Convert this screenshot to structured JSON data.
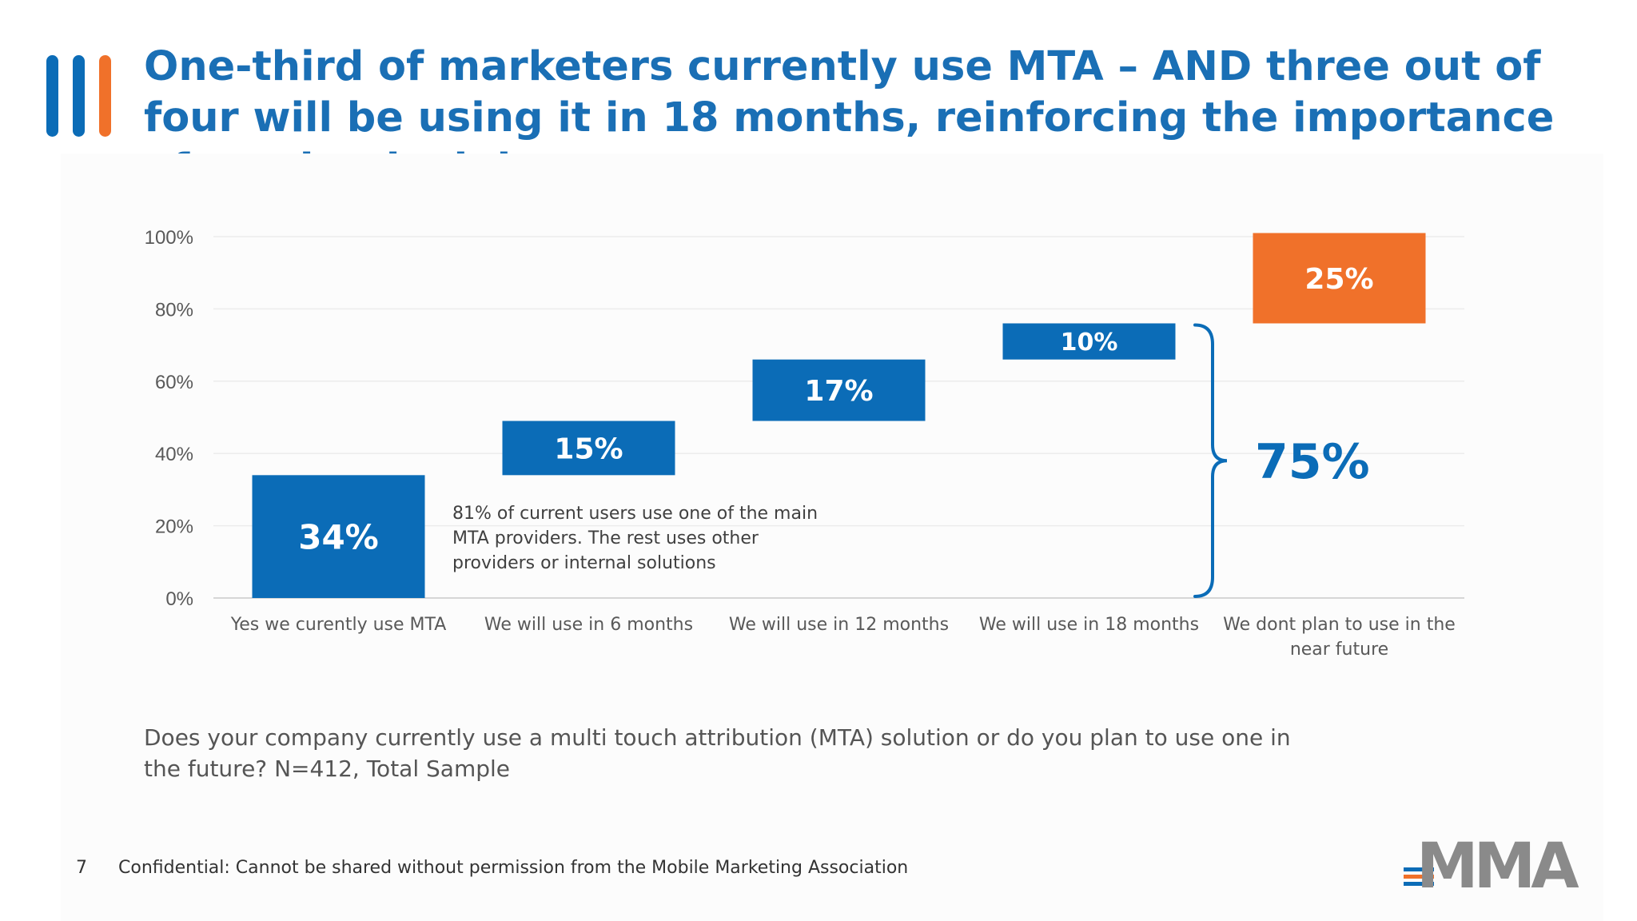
{
  "title": "One-third of marketers currently use MTA – AND three out of four will be using it in 18 months, reinforcing the importance of getting it right",
  "question": "Does your company currently use a multi touch attribution (MTA) solution or do you plan to use one in the future? N=412, Total Sample",
  "footer": {
    "page_number": "7",
    "confidential": "Confidential: Cannot be shared without permission from the Mobile Marketing Association"
  },
  "logo_text": "MMA",
  "colors": {
    "blue": "#0b6cb7",
    "orange": "#f0712a",
    "title_blue": "#1a6fb5",
    "logo_bar_orange": "#f0712a",
    "logo_gray": "#8a8a8a"
  },
  "chart_data": {
    "type": "bar",
    "subtype": "waterfall",
    "categories": [
      "Yes we curently use MTA",
      "We will use in 6 months",
      "We will use in 12 months",
      "We will use in 18 months",
      "We dont plan to use in the near future"
    ],
    "values": [
      34,
      15,
      17,
      10,
      25
    ],
    "starts": [
      0,
      34,
      49,
      66,
      76
    ],
    "data_labels": [
      "34%",
      "15%",
      "17%",
      "10%",
      "25%"
    ],
    "bar_colors": [
      "#0b6cb7",
      "#0b6cb7",
      "#0b6cb7",
      "#0b6cb7",
      "#f0712a"
    ],
    "ylim": [
      0,
      100
    ],
    "yticks": [
      0,
      20,
      40,
      60,
      80,
      100
    ],
    "ytick_labels": [
      "0%",
      "20%",
      "40%",
      "60%",
      "80%",
      "100%"
    ],
    "grid": true,
    "annotations": {
      "note": [
        "81% of current users use one of the main",
        "MTA providers.  The rest uses other",
        "providers or internal solutions"
      ],
      "brace_value": "75%",
      "brace_range": [
        0,
        76
      ]
    }
  }
}
